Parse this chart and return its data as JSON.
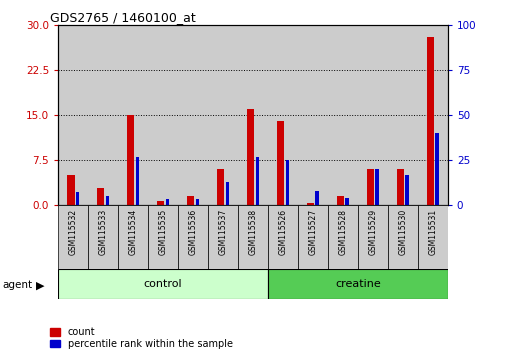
{
  "title": "GDS2765 / 1460100_at",
  "samples": [
    "GSM115532",
    "GSM115533",
    "GSM115534",
    "GSM115535",
    "GSM115536",
    "GSM115537",
    "GSM115538",
    "GSM115526",
    "GSM115527",
    "GSM115528",
    "GSM115529",
    "GSM115530",
    "GSM115531"
  ],
  "count_values": [
    5.0,
    2.8,
    15.0,
    0.8,
    1.5,
    6.0,
    16.0,
    14.0,
    0.4,
    1.5,
    6.0,
    6.0,
    28.0
  ],
  "percentile_values": [
    7.5,
    5.0,
    27.0,
    3.5,
    3.5,
    13.0,
    27.0,
    25.0,
    8.0,
    4.0,
    20.0,
    17.0,
    40.0
  ],
  "control_count": 7,
  "creatine_count": 6,
  "control_label": "control",
  "creatine_label": "creatine",
  "agent_label": "agent",
  "ylim_left": [
    0,
    30
  ],
  "ylim_right": [
    0,
    100
  ],
  "yticks_left": [
    0,
    7.5,
    15,
    22.5,
    30
  ],
  "yticks_right": [
    0,
    25,
    50,
    75,
    100
  ],
  "count_color": "#cc0000",
  "percentile_color": "#0000cc",
  "control_bg": "#ccffcc",
  "creatine_bg": "#55cc55",
  "col_bg": "#cccccc",
  "legend_count": "count",
  "legend_percentile": "percentile rank within the sample",
  "red_bar_width": 0.25,
  "blue_bar_width": 0.12
}
